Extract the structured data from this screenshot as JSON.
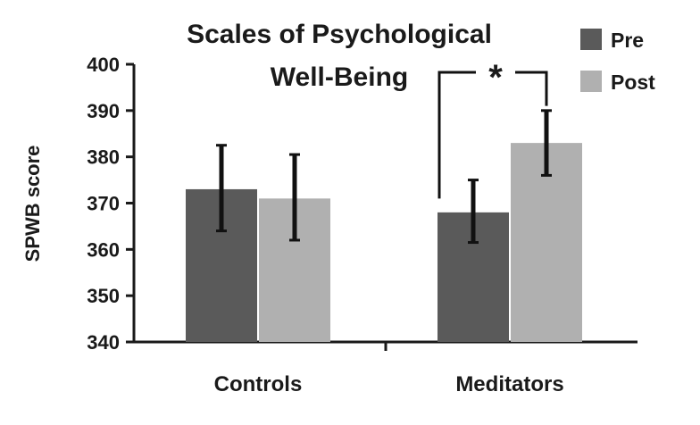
{
  "chart_data": {
    "type": "bar",
    "title_lines": [
      "Scales of Psychological",
      "Well-Being"
    ],
    "xlabel": "",
    "ylabel": "SPWB score",
    "ylim": [
      340,
      400
    ],
    "yticks": [
      340,
      350,
      360,
      370,
      380,
      390,
      400
    ],
    "categories": [
      "Controls",
      "Meditators"
    ],
    "series": [
      {
        "name": "Pre",
        "color": "#5a5a5a",
        "values": [
          373,
          368
        ],
        "error_low": [
          364,
          361.5
        ],
        "error_high": [
          382.5,
          375
        ]
      },
      {
        "name": "Post",
        "color": "#b0b0b0",
        "values": [
          371,
          383
        ],
        "error_low": [
          362,
          376
        ],
        "error_high": [
          380.5,
          390
        ]
      }
    ],
    "legend_position": "top-right",
    "grid": false,
    "annotation": {
      "label": "*",
      "category": "Meditators",
      "between": [
        "Pre",
        "Post"
      ]
    }
  }
}
